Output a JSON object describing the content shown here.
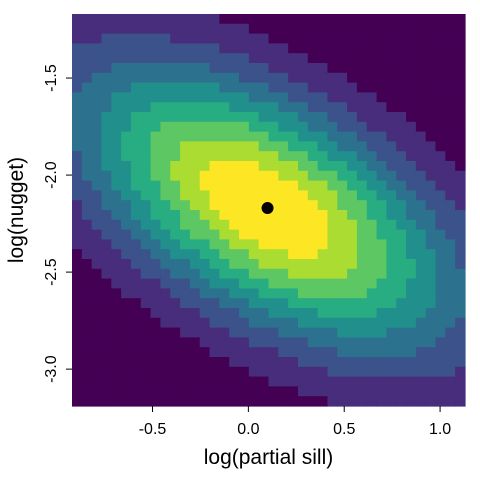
{
  "chart_data": {
    "type": "heatmap",
    "title": "",
    "xlabel": "log(partial sill)",
    "ylabel": "log(nugget)",
    "xlim": [
      -0.92,
      1.13
    ],
    "ylim": [
      -3.19,
      -1.17
    ],
    "x_ticks": [
      {
        "value": -0.5,
        "label": "-0.5"
      },
      {
        "value": 0.0,
        "label": "0.0"
      },
      {
        "value": 0.5,
        "label": "0.5"
      },
      {
        "value": 1.0,
        "label": "1.0"
      }
    ],
    "y_ticks": [
      {
        "value": -1.5,
        "label": "-1.5"
      },
      {
        "value": -2.0,
        "label": "-2.0"
      },
      {
        "value": -2.5,
        "label": "-2.5"
      },
      {
        "value": -3.0,
        "label": "-3.0"
      }
    ],
    "grid_size": [
      40,
      40
    ],
    "grid": false,
    "colormap": "viridis",
    "color_levels": [
      "#440154",
      "#472D7B",
      "#3B528B",
      "#2C728E",
      "#21908C",
      "#27AD81",
      "#5DC863",
      "#AADC32",
      "#FDE725"
    ],
    "surface_peak": {
      "x": 0.1,
      "y": -2.17
    },
    "surface_note": "elliptical likelihood-style surface with negative correlation between axes",
    "max_point": {
      "x": 0.1,
      "y": -2.17,
      "color": "#000000"
    }
  }
}
